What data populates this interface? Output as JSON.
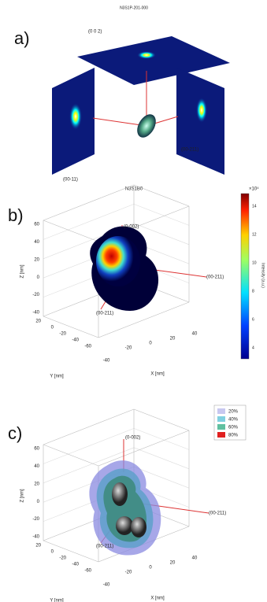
{
  "panels": [
    {
      "label": "a)",
      "title": "N3S1P-201-000",
      "annotations": [
        "(0 0 2)",
        "(00-11)",
        "(00-211)"
      ]
    },
    {
      "label": "b)",
      "title": "N3S1B0",
      "annotations": [
        "(0-002)",
        "(00-211)",
        "(00-211)"
      ],
      "z_axis": "Z [nm]",
      "y_axis": "Y [nm]",
      "x_axis": "X [nm]",
      "z_ticks": [
        "60",
        "40",
        "20",
        "0",
        "-20",
        "-40"
      ],
      "y_ticks": [
        "20",
        "0",
        "-20",
        "-40",
        "-60"
      ],
      "x_ticks": [
        "-40",
        "-20",
        "0",
        "20",
        "40"
      ],
      "colorbar": {
        "exponent": "×10⁴",
        "ticks": [
          "14",
          "12",
          "10",
          "8",
          "6",
          "4"
        ],
        "label": "Intensity (a.u.)"
      }
    },
    {
      "label": "c)",
      "annotations": [
        "(0-002)",
        "(00-211)",
        "(00-211)"
      ],
      "z_axis": "Z [nm]",
      "y_axis": "Y [nm]",
      "x_axis": "X [nm]",
      "z_ticks": [
        "60",
        "40",
        "20",
        "0",
        "-20",
        "-40"
      ],
      "y_ticks": [
        "20",
        "0",
        "-20",
        "-40",
        "-60"
      ],
      "x_ticks": [
        "-40",
        "-20",
        "0",
        "20",
        "40"
      ],
      "legend": [
        "20%",
        "40%",
        "60%",
        "80%"
      ]
    }
  ]
}
